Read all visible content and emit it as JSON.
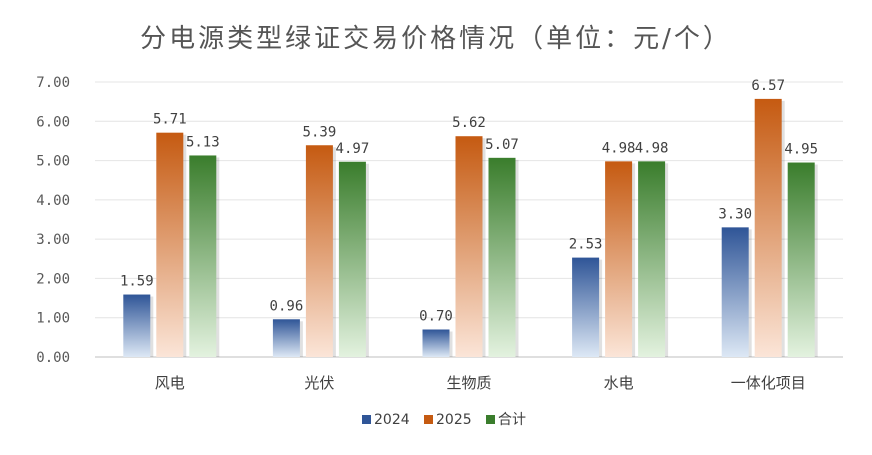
{
  "chart_data": {
    "type": "bar",
    "title": "分电源类型绿证交易价格情况（单位：元/个）",
    "categories": [
      "风电",
      "光伏",
      "生物质",
      "水电",
      "一体化项目"
    ],
    "series": [
      {
        "name": "2024",
        "values": [
          1.59,
          0.96,
          0.7,
          2.53,
          3.3
        ],
        "color": "#2f5597"
      },
      {
        "name": "2025",
        "values": [
          5.71,
          5.39,
          5.62,
          4.98,
          6.57
        ],
        "color": "#c55a11"
      },
      {
        "name": "合计",
        "values": [
          5.13,
          4.97,
          5.07,
          4.98,
          4.95
        ],
        "color": "#3a7d2c"
      }
    ],
    "ylim": [
      0,
      7
    ],
    "yticks": [
      "0.00",
      "1.00",
      "2.00",
      "3.00",
      "4.00",
      "5.00",
      "6.00",
      "7.00"
    ],
    "data_labels": [
      [
        "1.59",
        "0.96",
        "0.70",
        "2.53",
        "3.30"
      ],
      [
        "5.71",
        "5.39",
        "5.62",
        "4.98",
        "6.57"
      ],
      [
        "5.13",
        "4.97",
        "5.07",
        "4.98",
        "4.95"
      ]
    ],
    "grid": true,
    "legend_position": "bottom"
  }
}
